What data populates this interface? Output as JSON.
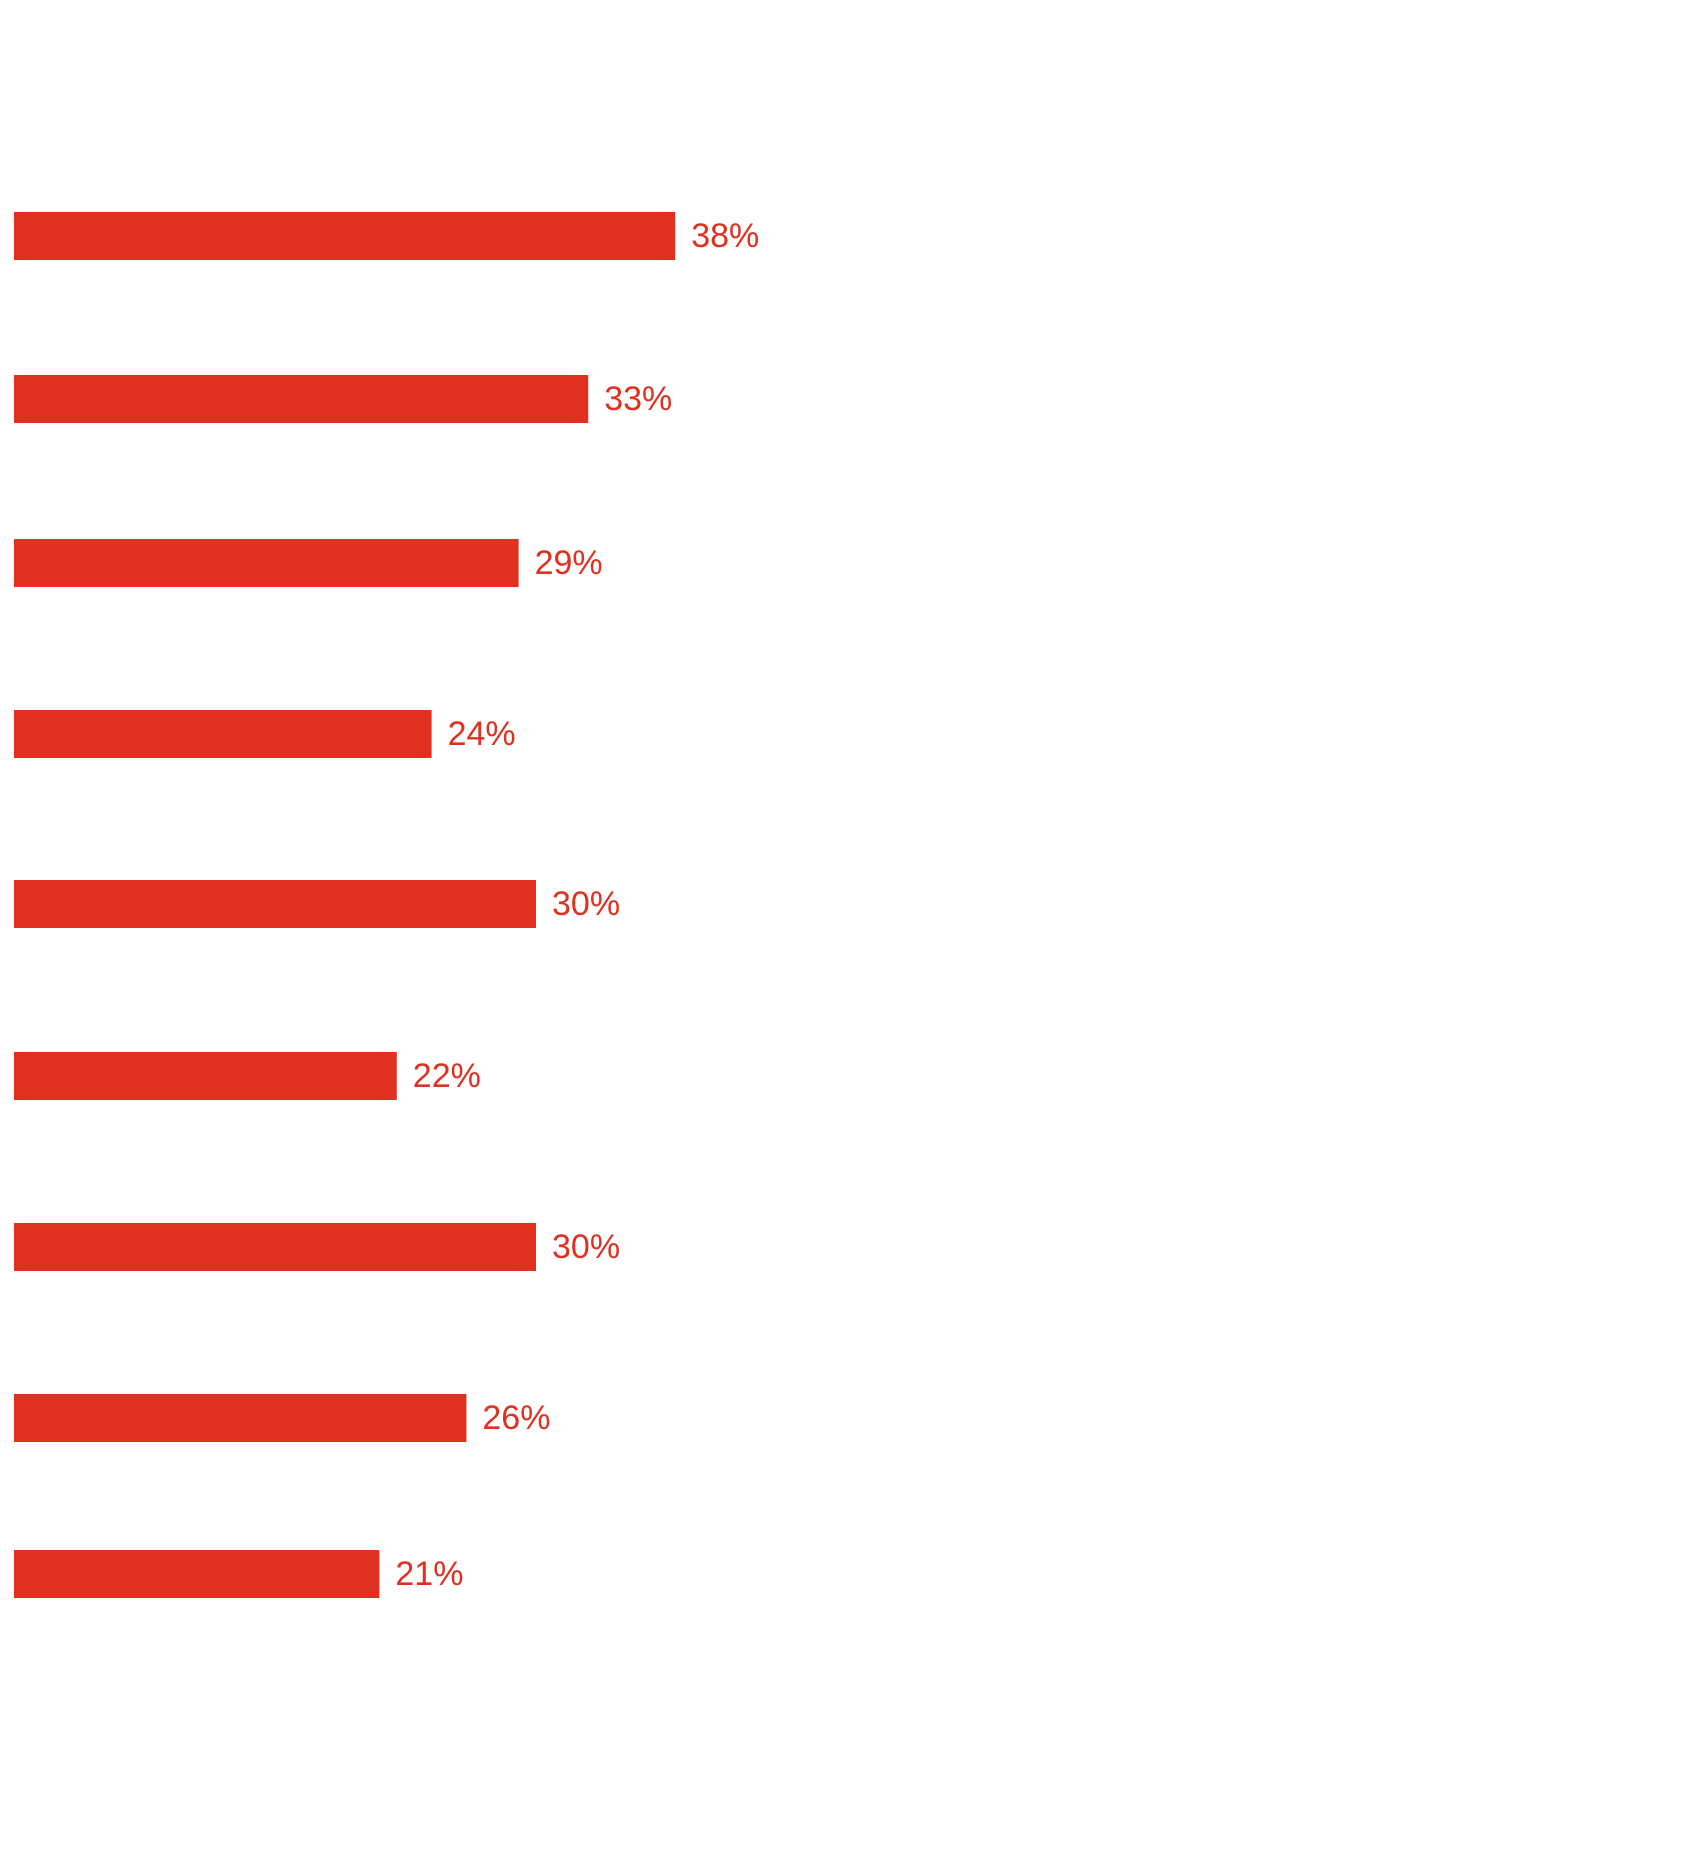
{
  "chart_data": {
    "type": "bar",
    "orientation": "horizontal",
    "bar_color": "#e03020",
    "label_color": "#e03020",
    "background": "#ffffff",
    "xlim": [
      0,
      100
    ],
    "grid": false,
    "legend": "none",
    "values": [
      38,
      33,
      29,
      24,
      30,
      22,
      30,
      26,
      21
    ],
    "data_labels": [
      "38%",
      "33%",
      "29%",
      "24%",
      "30%",
      "22%",
      "30%",
      "26%",
      "21%"
    ]
  }
}
